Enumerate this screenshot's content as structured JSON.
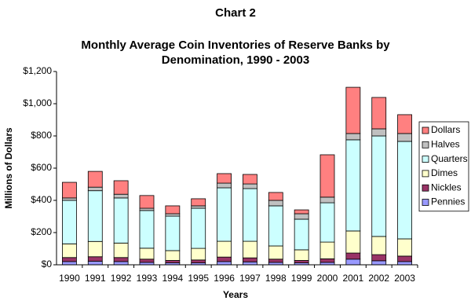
{
  "chart_data": {
    "type": "stacked-bar",
    "title": "Chart 2",
    "subtitle": [
      "Monthly Average Coin Inventories of Reserve Banks by",
      "Denomination, 1990 - 2003"
    ],
    "x_label": "Years",
    "y_label": "Millions of Dollars",
    "categories": [
      "1990",
      "1991",
      "1992",
      "1993",
      "1994",
      "1995",
      "1996",
      "1997",
      "1998",
      "1999",
      "2000",
      "2001",
      "2002",
      "2003"
    ],
    "series": [
      {
        "name": "Pennies",
        "color": "#9999ff",
        "values": [
          20,
          22,
          20,
          15,
          12,
          12,
          20,
          18,
          15,
          12,
          15,
          35,
          25,
          20
        ]
      },
      {
        "name": "Nickles",
        "color": "#993366",
        "values": [
          25,
          28,
          25,
          20,
          15,
          18,
          28,
          25,
          20,
          15,
          22,
          38,
          38,
          34
        ]
      },
      {
        "name": "Dimes",
        "color": "#ffffcc",
        "values": [
          85,
          95,
          90,
          68,
          61,
          72,
          98,
          103,
          82,
          66,
          104,
          137,
          113,
          107
        ]
      },
      {
        "name": "Quarters",
        "color": "#ccffff",
        "values": [
          270,
          315,
          280,
          234,
          214,
          249,
          332,
          327,
          249,
          190,
          244,
          566,
          624,
          605
        ]
      },
      {
        "name": "Halves",
        "color": "#c0c0c0",
        "values": [
          15,
          22,
          23,
          14,
          15,
          15,
          29,
          29,
          34,
          34,
          35,
          39,
          44,
          49
        ]
      },
      {
        "name": "Dollars",
        "color": "#ff8080",
        "values": [
          97,
          98,
          84,
          79,
          49,
          44,
          59,
          59,
          49,
          24,
          263,
          287,
          195,
          117
        ]
      }
    ],
    "ylim": [
      0,
      1200
    ],
    "yticks": [
      {
        "value": 0,
        "label": "$0"
      },
      {
        "value": 200,
        "label": "$200"
      },
      {
        "value": 400,
        "label": "$400"
      },
      {
        "value": 600,
        "label": "$600"
      },
      {
        "value": 800,
        "label": "$800"
      },
      {
        "value": 1000,
        "label": "$1,000"
      },
      {
        "value": 1200,
        "label": "$1,200"
      }
    ],
    "grid": false,
    "legend": "right"
  }
}
